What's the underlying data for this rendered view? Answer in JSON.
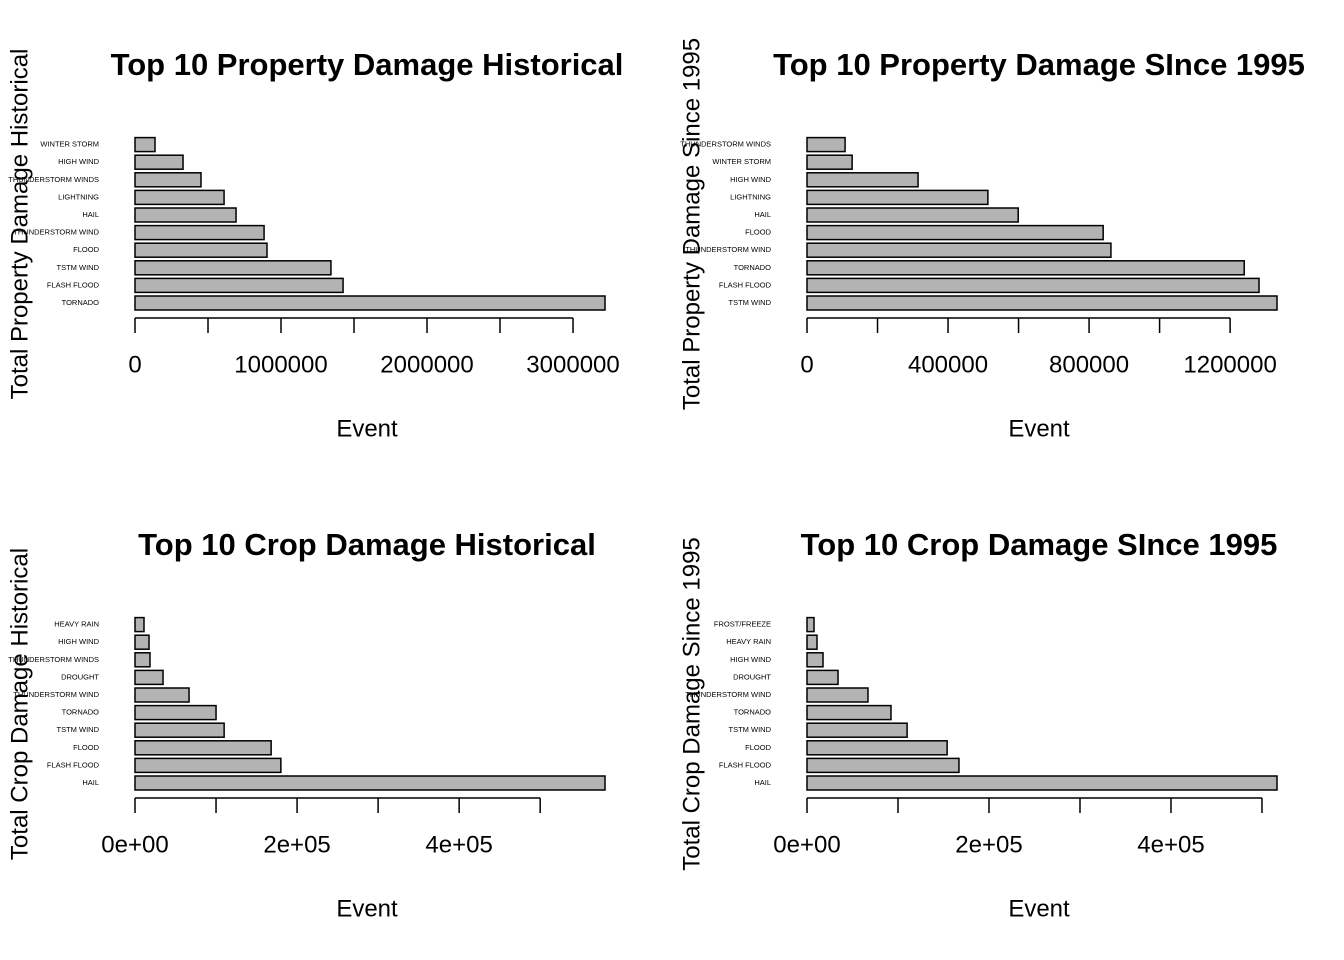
{
  "chart_data": [
    {
      "type": "bar",
      "orientation": "horizontal",
      "title": "Top 10 Property Damage Historical",
      "xlabel": "Event",
      "ylabel": "Total Property Damage Historical",
      "categories": [
        "TORNADO",
        "FLASH FLOOD",
        "TSTM WIND",
        "FLOOD",
        "THUNDERSTORM WIND",
        "HAIL",
        "LIGHTNING",
        "THUNDERSTORM WINDS",
        "HIGH WIND",
        "WINTER STORM"
      ],
      "values": [
        3219000,
        1425000,
        1342000,
        904000,
        884000,
        692000,
        610000,
        452000,
        329000,
        137000
      ],
      "color": "#b3b3b3",
      "xlim": [
        0,
        3219000
      ],
      "xticks": [
        0,
        1000000,
        2000000,
        3000000
      ],
      "xminorticks": [
        500000,
        1500000,
        2500000
      ]
    },
    {
      "type": "bar",
      "orientation": "horizontal",
      "title": "Top 10 Property Damage SInce 1995",
      "xlabel": "Event",
      "ylabel": "Total Property Damage Since 1995",
      "categories": [
        "TSTM WIND",
        "FLASH FLOOD",
        "TORNADO",
        "THUNDERSTORM WIND",
        "FLOOD",
        "HAIL",
        "LIGHTNING",
        "HIGH WIND",
        "WINTER STORM",
        "THUNDERSTORM WINDS"
      ],
      "values": [
        1333000,
        1282000,
        1240000,
        862000,
        840000,
        599000,
        513000,
        315000,
        128000,
        108000
      ],
      "color": "#b3b3b3",
      "xlim": [
        0,
        1333000
      ],
      "xticks": [
        0,
        400000,
        800000,
        1200000
      ],
      "xminorticks": [
        200000,
        600000,
        1000000
      ]
    },
    {
      "type": "bar",
      "orientation": "horizontal",
      "title": "Top 10 Crop Damage Historical",
      "xlabel": "Event",
      "ylabel": "Total Crop Damage Historical",
      "categories": [
        "HAIL",
        "FLASH FLOOD",
        "FLOOD",
        "TSTM WIND",
        "TORNADO",
        "THUNDERSTORM WIND",
        "DROUGHT",
        "THUNDERSTORM WINDS",
        "HIGH WIND",
        "HEAVY RAIN"
      ],
      "values": [
        580000,
        180000,
        168000,
        110000,
        100000,
        66700,
        34600,
        18500,
        17300,
        11100
      ],
      "color": "#b3b3b3",
      "xlim": [
        0,
        580000
      ],
      "xticks": [
        {
          "value": 0,
          "label": "0e+00"
        },
        {
          "value": 200000,
          "label": "2e+05"
        },
        {
          "value": 400000,
          "label": "4e+05"
        }
      ],
      "xminorticks": [
        100000,
        300000,
        500000
      ]
    },
    {
      "type": "bar",
      "orientation": "horizontal",
      "title": "Top 10 Crop Damage SInce 1995",
      "xlabel": "Event",
      "ylabel": "Total Crop Damage Since 1995",
      "categories": [
        "HAIL",
        "FLASH FLOOD",
        "FLOOD",
        "TSTM WIND",
        "TORNADO",
        "THUNDERSTORM WIND",
        "DROUGHT",
        "HIGH WIND",
        "HEAVY RAIN",
        "FROST/FREEZE"
      ],
      "values": [
        516500,
        167000,
        154000,
        110000,
        92300,
        67000,
        34100,
        17600,
        11000,
        7700
      ],
      "color": "#b3b3b3",
      "xlim": [
        0,
        516500
      ],
      "xticks": [
        {
          "value": 0,
          "label": "0e+00"
        },
        {
          "value": 200000,
          "label": "2e+05"
        },
        {
          "value": 400000,
          "label": "4e+05"
        }
      ],
      "xminorticks": [
        100000,
        300000,
        500000
      ]
    }
  ]
}
